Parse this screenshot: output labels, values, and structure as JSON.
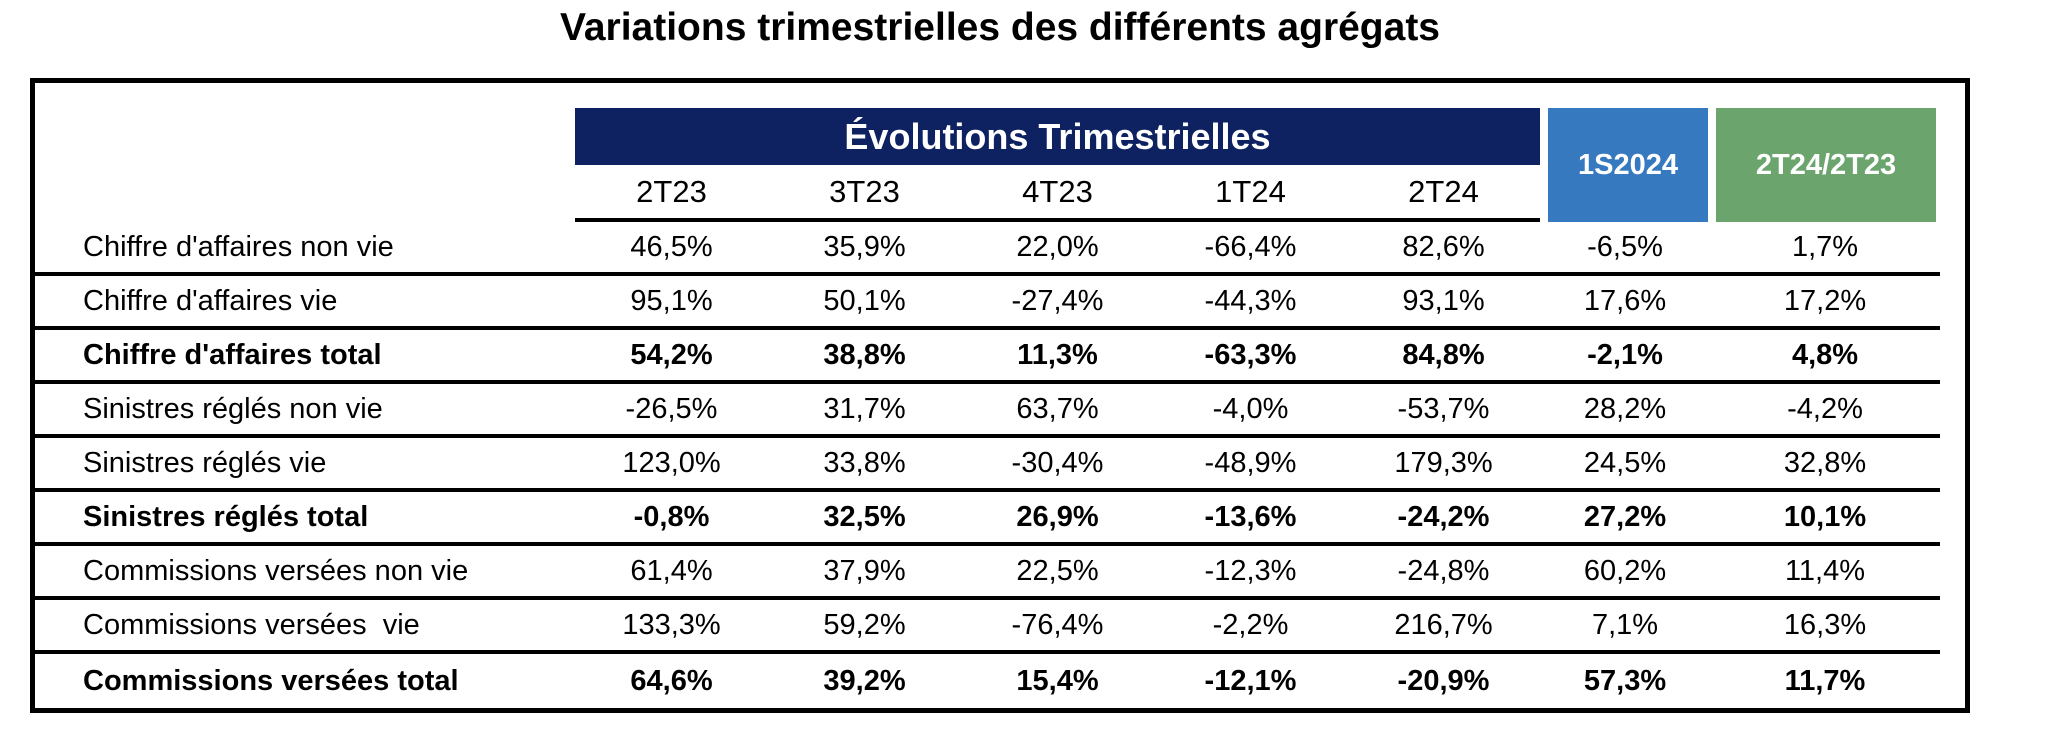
{
  "title": "Variations trimestrielles des différents agrégats",
  "chart_data": {
    "type": "table",
    "title": "Variations trimestrielles des différents agrégats",
    "group_header": "Évolutions Trimestrielles",
    "columns": [
      "2T23",
      "3T23",
      "4T23",
      "1T24",
      "2T24",
      "1S2024",
      "2T24/2T23"
    ],
    "rows": [
      {
        "label": "Chiffre d'affaires non vie",
        "bold": false,
        "values": [
          "46,5%",
          "35,9%",
          "22,0%",
          "-66,4%",
          "82,6%",
          "-6,5%",
          "1,7%"
        ]
      },
      {
        "label": "Chiffre d'affaires vie",
        "bold": false,
        "values": [
          "95,1%",
          "50,1%",
          "-27,4%",
          "-44,3%",
          "93,1%",
          "17,6%",
          "17,2%"
        ]
      },
      {
        "label": "Chiffre d'affaires total",
        "bold": true,
        "values": [
          "54,2%",
          "38,8%",
          "11,3%",
          "-63,3%",
          "84,8%",
          "-2,1%",
          "4,8%"
        ]
      },
      {
        "label": "Sinistres réglés non vie",
        "bold": false,
        "values": [
          "-26,5%",
          "31,7%",
          "63,7%",
          "-4,0%",
          "-53,7%",
          "28,2%",
          "-4,2%"
        ]
      },
      {
        "label": "Sinistres réglés vie",
        "bold": false,
        "values": [
          "123,0%",
          "33,8%",
          "-30,4%",
          "-48,9%",
          "179,3%",
          "24,5%",
          "32,8%"
        ]
      },
      {
        "label": "Sinistres réglés total",
        "bold": true,
        "values": [
          "-0,8%",
          "32,5%",
          "26,9%",
          "-13,6%",
          "-24,2%",
          "27,2%",
          "10,1%"
        ]
      },
      {
        "label": "Commissions versées non vie",
        "bold": false,
        "values": [
          "61,4%",
          "37,9%",
          "22,5%",
          "-12,3%",
          "-24,8%",
          "60,2%",
          "11,4%"
        ]
      },
      {
        "label": "Commissions versées  vie",
        "bold": false,
        "values": [
          "133,3%",
          "59,2%",
          "-76,4%",
          "-2,2%",
          "216,7%",
          "7,1%",
          "16,3%"
        ]
      },
      {
        "label": "Commissions versées total",
        "bold": true,
        "values": [
          "64,6%",
          "39,2%",
          "15,4%",
          "-12,1%",
          "-20,9%",
          "57,3%",
          "11,7%"
        ]
      }
    ]
  },
  "styles": {
    "banner_bg": "#0E2262",
    "blue_bg": "#3779BF",
    "green_bg": "#6BA46D",
    "line_color": "#000000"
  }
}
